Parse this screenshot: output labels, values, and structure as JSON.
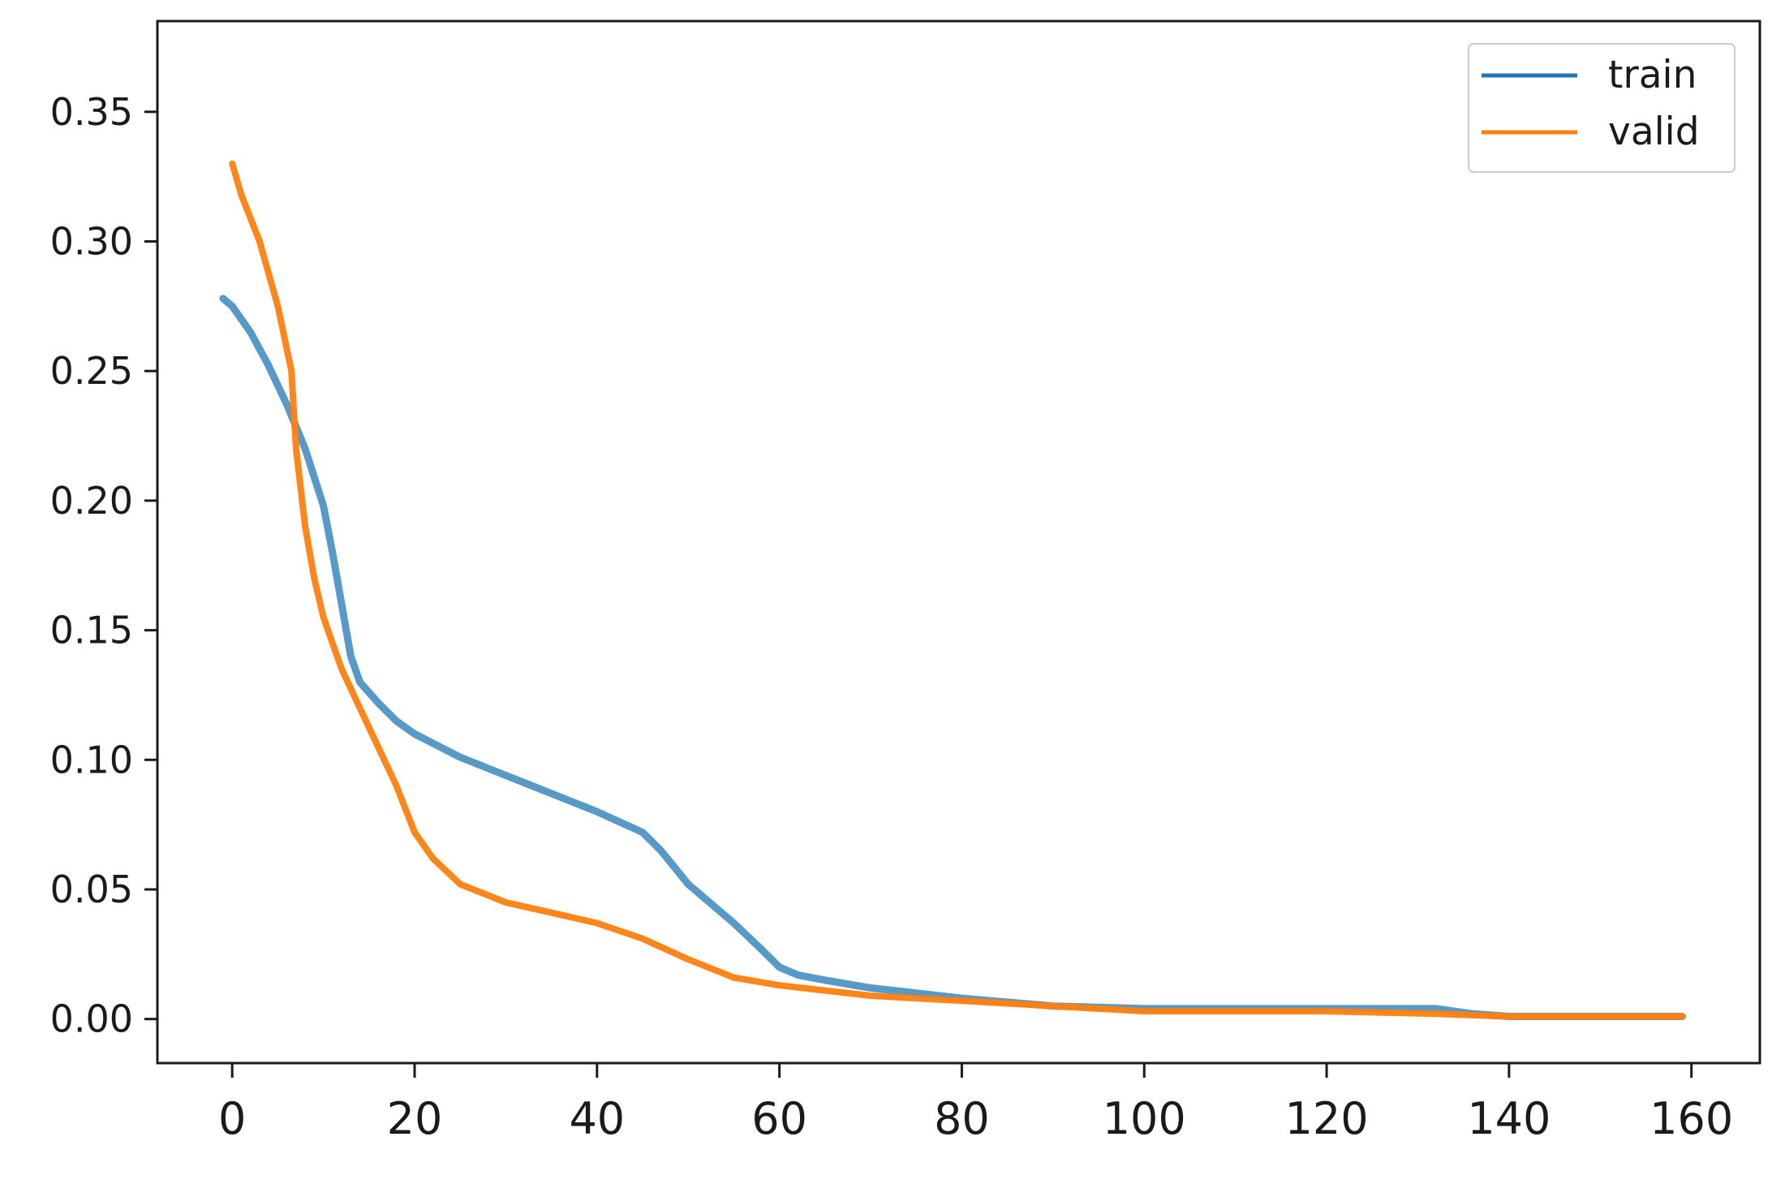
{
  "chart_data": {
    "type": "line",
    "title": "",
    "xlabel": "",
    "ylabel": "",
    "xlim": [
      -8.2,
      167.5
    ],
    "ylim": [
      -0.017,
      0.385
    ],
    "xticks": [
      0,
      20,
      40,
      60,
      80,
      100,
      120,
      140,
      160
    ],
    "xtick_labels": [
      "0",
      "20",
      "40",
      "60",
      "80",
      "100",
      "120",
      "140",
      "160"
    ],
    "yticks": [
      0.0,
      0.05,
      0.1,
      0.15,
      0.2,
      0.25,
      0.3,
      0.35
    ],
    "ytick_labels": [
      "0.00",
      "0.05",
      "0.10",
      "0.15",
      "0.20",
      "0.25",
      "0.30",
      "0.35"
    ],
    "grid": false,
    "legend": {
      "position": "top-right"
    },
    "series": [
      {
        "name": "train",
        "color": "#1f77b4",
        "x": [
          -1,
          0,
          2,
          4,
          6,
          8,
          10,
          11,
          12,
          13,
          14,
          16,
          18,
          20,
          25,
          30,
          35,
          40,
          45,
          47,
          50,
          55,
          58,
          60,
          62,
          65,
          70,
          80,
          90,
          100,
          110,
          120,
          132,
          134,
          136,
          140,
          150,
          159
        ],
        "y": [
          0.278,
          0.275,
          0.265,
          0.252,
          0.237,
          0.22,
          0.198,
          0.18,
          0.16,
          0.14,
          0.13,
          0.122,
          0.115,
          0.11,
          0.101,
          0.094,
          0.087,
          0.08,
          0.072,
          0.065,
          0.052,
          0.037,
          0.027,
          0.02,
          0.017,
          0.015,
          0.012,
          0.008,
          0.005,
          0.004,
          0.004,
          0.004,
          0.004,
          0.003,
          0.002,
          0.001,
          0.001,
          0.001
        ]
      },
      {
        "name": "valid",
        "color": "#ff7f0e",
        "x": [
          0,
          1,
          3,
          5,
          6.5,
          7,
          8,
          9,
          10,
          11,
          12,
          14,
          16,
          18,
          20,
          22,
          25,
          30,
          35,
          40,
          45,
          50,
          55,
          60,
          70,
          80,
          90,
          100,
          110,
          120,
          132,
          140,
          150,
          159
        ],
        "y": [
          0.33,
          0.318,
          0.3,
          0.275,
          0.25,
          0.22,
          0.19,
          0.17,
          0.155,
          0.145,
          0.135,
          0.12,
          0.105,
          0.09,
          0.072,
          0.062,
          0.052,
          0.045,
          0.041,
          0.037,
          0.031,
          0.023,
          0.016,
          0.013,
          0.009,
          0.007,
          0.005,
          0.003,
          0.003,
          0.003,
          0.002,
          0.001,
          0.001,
          0.001
        ]
      }
    ]
  }
}
